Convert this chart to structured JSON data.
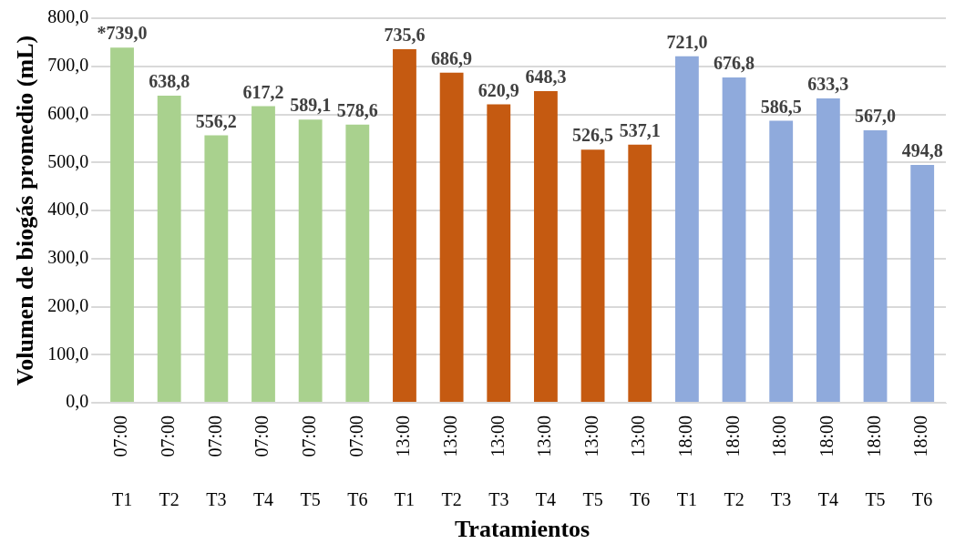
{
  "chart_data": {
    "type": "bar",
    "xlabel": "Tratamientos",
    "ylabel": "Volumen de biogás promedio (mL)",
    "categories": [
      "07:00 T1",
      "07:00 T2",
      "07:00 T3",
      "07:00 T4",
      "07:00 T5",
      "07:00 T6",
      "13:00 T1",
      "13:00 T2",
      "13:00 T3",
      "13:00 T4",
      "13:00 T5",
      "13:00 T6",
      "18:00 T1",
      "18:00 T2",
      "18:00 T3",
      "18:00 T4",
      "18:00 T5",
      "18:00 T6"
    ],
    "values": [
      739.0,
      638.8,
      556.2,
      617.2,
      589.1,
      578.6,
      735.6,
      686.9,
      620.9,
      648.3,
      526.5,
      537.1,
      721.0,
      676.8,
      586.5,
      633.3,
      567.0,
      494.8
    ],
    "colors": [
      "#a9d18e",
      "#a9d18e",
      "#a9d18e",
      "#a9d18e",
      "#a9d18e",
      "#a9d18e",
      "#c55a11",
      "#c55a11",
      "#c55a11",
      "#c55a11",
      "#c55a11",
      "#c55a11",
      "#8faadc",
      "#8faadc",
      "#8faadc",
      "#8faadc",
      "#8faadc",
      "#8faadc"
    ],
    "value_labels": [
      "*739,0",
      "638,8",
      "556,2",
      "617,2",
      "589,1",
      "578,6",
      "735,6",
      "686,9",
      "620,9",
      "648,3",
      "526,5",
      "537,1",
      "721,0",
      "676,8",
      "586,5",
      "633,3",
      "567,0",
      "494,8"
    ],
    "ylim": [
      0,
      800
    ],
    "yticks": [
      {
        "value": 0,
        "label": "0,0"
      },
      {
        "value": 100,
        "label": "100,0"
      },
      {
        "value": 200,
        "label": "200,0"
      },
      {
        "value": 300,
        "label": "300,0"
      },
      {
        "value": 400,
        "label": "400,0"
      },
      {
        "value": 500,
        "label": "500,0"
      },
      {
        "value": 600,
        "label": "600,0"
      },
      {
        "value": 700,
        "label": "700,0"
      },
      {
        "value": 800,
        "label": "800,0"
      }
    ],
    "grid": "y"
  }
}
